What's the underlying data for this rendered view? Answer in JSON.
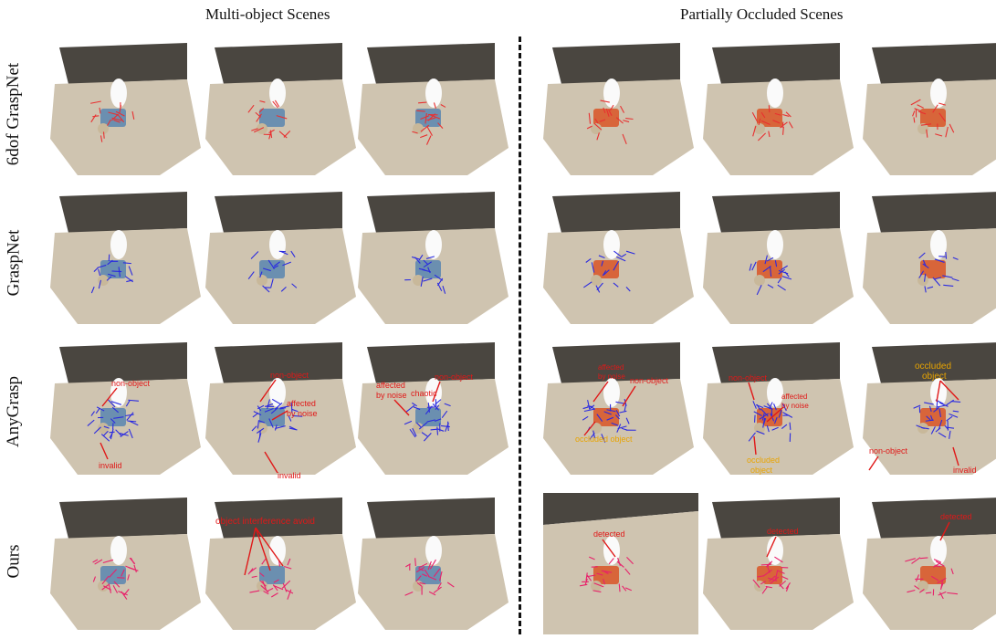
{
  "headers": {
    "left": "Multi-object Scenes",
    "right": "Partially Occluded Scenes"
  },
  "rows": [
    {
      "label": "6dof GraspNet",
      "grasp_color": "#e83030"
    },
    {
      "label": "GraspNet",
      "grasp_color": "#2a2ae0"
    },
    {
      "label": "AnyGrasp",
      "grasp_color": "#2a2ae0"
    },
    {
      "label": "Ours",
      "grasp_color": "#e8206a"
    }
  ],
  "annotations": {
    "anygrasp": {
      "c1_non_object": "non-object",
      "c1_invalid": "invalid",
      "c2_non_object": "non-object",
      "c2_affected": "affected",
      "c2_by_noise": "by noise",
      "c2_invalid": "invalid",
      "c3_affected": "affected",
      "c3_by_noise": "by noise",
      "c3_chaotic": "chaotic",
      "c3_non_object": "non-object",
      "c4_affected": "affected",
      "c4_by_noise": "by noise",
      "c4_non_object": "non-object",
      "c4_occluded_object": "occluded object",
      "c5_non_object": "non-object",
      "c5_affected": "affected",
      "c5_by_noise": "by noise",
      "c5_occluded": "occluded",
      "c5_object": "object",
      "c6_occluded": "occluded",
      "c6_object": "object",
      "c6_non_object": "non-object",
      "c6_invalid": "invalid"
    },
    "ours": {
      "c2_reduced": "object interference avoid",
      "c4_detected": "detected",
      "c5_detected": "detected",
      "c6_detected": "detected"
    }
  },
  "colors": {
    "annotation_red": "#e01818",
    "annotation_yellow": "#e8a400",
    "table": "#cfc4b0",
    "wall": "#4a4640"
  }
}
